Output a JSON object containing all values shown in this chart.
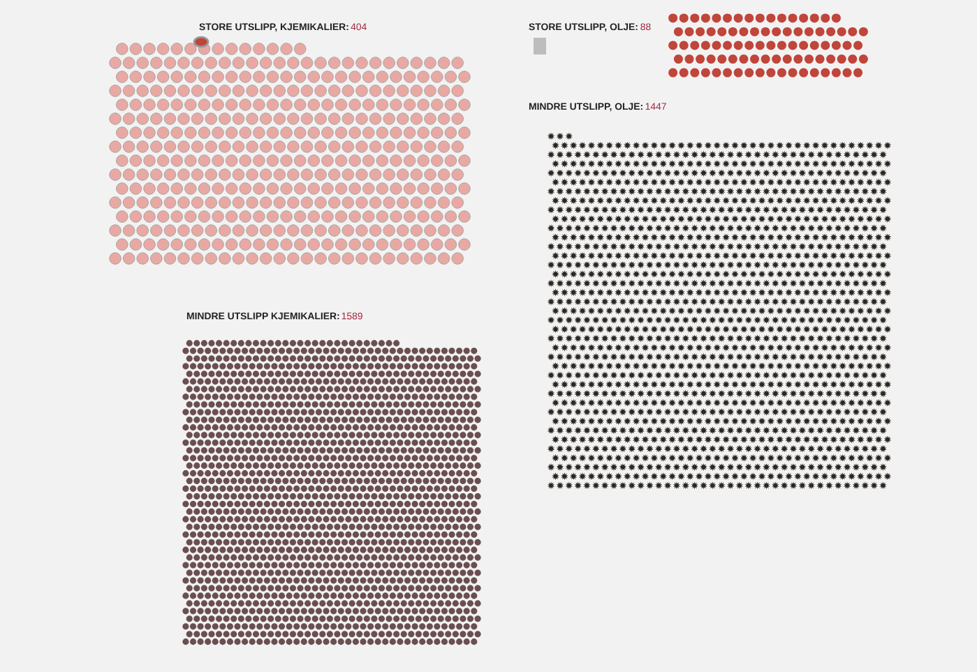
{
  "chart_data": [
    {
      "type": "other",
      "title": "STORE UTSLIPP, KJEMIKALIER:",
      "values": [
        404
      ],
      "colors": [
        "#e8a9a4"
      ],
      "data_labels": true
    },
    {
      "type": "other",
      "title": "STORE UTSLIPP, OLJE:",
      "values": [
        88
      ],
      "colors": [
        "#c0453a"
      ],
      "data_labels": true
    },
    {
      "type": "other",
      "title": "MINDRE UTSLIPP, OLJE:",
      "values": [
        1447
      ],
      "colors": [
        "#2b2620"
      ],
      "data_labels": true
    },
    {
      "type": "other",
      "title": "MINDRE UTSLIPP KJEMIKALIER:",
      "values": [
        1589
      ],
      "colors": [
        "#6b4f50"
      ],
      "data_labels": true
    }
  ]
}
